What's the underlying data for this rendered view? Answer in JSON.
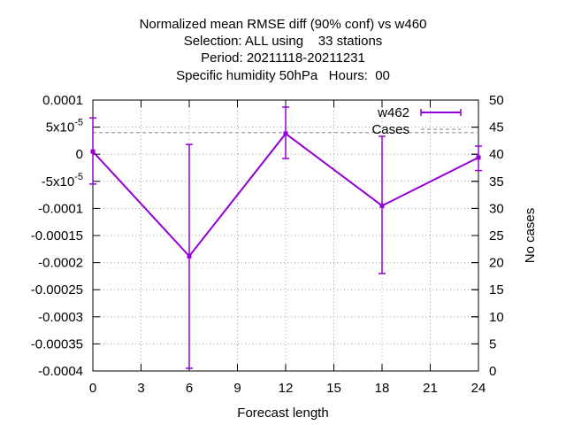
{
  "chart_data": {
    "type": "line",
    "title": [
      "Normalized mean RMSE diff (90% conf) vs w460",
      "Selection: ALL using    33 stations",
      "Period: 20211118-20211231",
      "Specific humidity 50hPa   Hours:  00"
    ],
    "xlabel": "Forecast length",
    "ylabel": "",
    "y2label": "No cases",
    "xlim": [
      0,
      24
    ],
    "ylim": [
      -0.0004,
      0.0001
    ],
    "y2lim": [
      0,
      50
    ],
    "xticks": [
      "0",
      "3",
      "6",
      "9",
      "12",
      "15",
      "18",
      "21",
      "24"
    ],
    "xtick_values": [
      0,
      3,
      6,
      9,
      12,
      15,
      18,
      21,
      24
    ],
    "yticks": [
      "0.0001",
      "5x10^-5",
      "0",
      "-5x10^-5",
      "-0.0001",
      "-0.00015",
      "-0.0002",
      "-0.00025",
      "-0.0003",
      "-0.00035",
      "-0.0004"
    ],
    "ytick_values": [
      0.0001,
      5e-05,
      0,
      -5e-05,
      -0.0001,
      -0.00015,
      -0.0002,
      -0.00025,
      -0.0003,
      -0.00035,
      -0.0004
    ],
    "y2ticks": [
      "50",
      "45",
      "40",
      "35",
      "30",
      "25",
      "20",
      "15",
      "10",
      "5",
      "0"
    ],
    "y2tick_values": [
      50,
      45,
      40,
      35,
      30,
      25,
      20,
      15,
      10,
      5,
      0
    ],
    "grid": true,
    "legend_position": "top-right",
    "series": [
      {
        "name": "w462",
        "color": "#9400d3",
        "x": [
          0,
          6,
          12,
          18,
          24
        ],
        "y": [
          5e-06,
          -0.000188,
          3.8e-05,
          -9.5e-05,
          -6e-06
        ],
        "err_low": [
          -5.5e-05,
          -0.000395,
          -8e-06,
          -0.00022,
          -3e-05
        ],
        "err_high": [
          6.7e-05,
          1.8e-05,
          8.7e-05,
          3.3e-05,
          1.5e-05
        ]
      },
      {
        "name": "Cases",
        "color": "#a0a0a0",
        "axis": "y2",
        "style": "dashed",
        "x": [
          0,
          24
        ],
        "y": [
          44,
          44
        ]
      }
    ]
  }
}
